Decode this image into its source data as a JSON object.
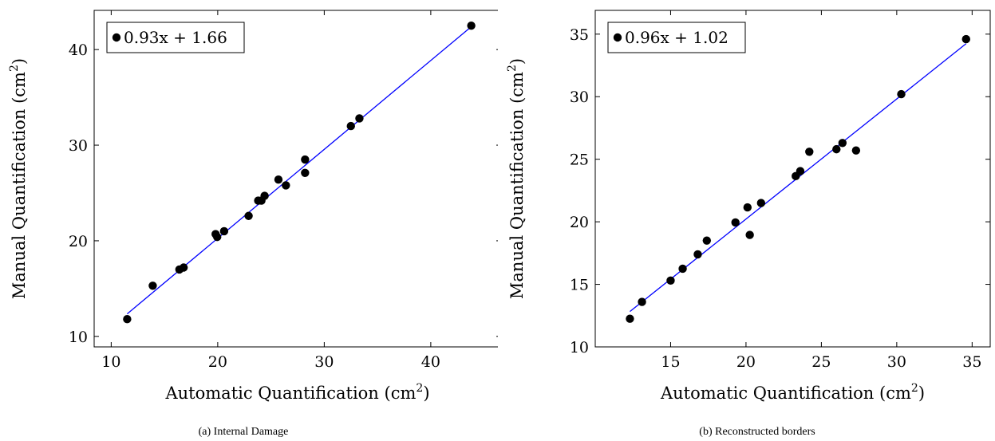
{
  "chart_data": [
    {
      "type": "scatter",
      "caption": "(a) Internal Damage",
      "xlabel": "Automatic Quantification (cm",
      "ylabel": "Manual Quantification (cm",
      "unit_superscript": "2",
      "xlim": [
        8.4,
        46.6
      ],
      "ylim": [
        8.9,
        44.1
      ],
      "xticks": [
        10,
        20,
        30,
        40
      ],
      "yticks": [
        10,
        20,
        30,
        40
      ],
      "grid": false,
      "legend_position": "top-left",
      "legend_label": "0.93x + 1.66",
      "fit": {
        "slope": 0.93,
        "intercept": 1.66,
        "x_range": [
          11.5,
          43.8
        ],
        "color": "#0000ff"
      },
      "points": [
        [
          11.5,
          11.8
        ],
        [
          13.9,
          15.3
        ],
        [
          16.4,
          17.0
        ],
        [
          16.8,
          17.2
        ],
        [
          19.8,
          20.7
        ],
        [
          19.95,
          20.4
        ],
        [
          20.6,
          21.0
        ],
        [
          22.9,
          22.6
        ],
        [
          23.8,
          24.2
        ],
        [
          24.1,
          24.2
        ],
        [
          24.4,
          24.7
        ],
        [
          25.7,
          26.4
        ],
        [
          26.4,
          25.8
        ],
        [
          28.2,
          28.5
        ],
        [
          28.2,
          27.1
        ],
        [
          32.5,
          32.0
        ],
        [
          33.3,
          32.8
        ],
        [
          43.8,
          42.5
        ]
      ]
    },
    {
      "type": "scatter",
      "caption": "(b) Reconstructed borders",
      "xlabel": "Automatic Quantification (cm",
      "ylabel": "Manual Quantification (cm",
      "unit_superscript": "2",
      "xlim": [
        10.0,
        36.2
      ],
      "ylim": [
        10.0,
        36.9
      ],
      "xticks": [
        15,
        20,
        25,
        30,
        35
      ],
      "yticks": [
        10,
        15,
        20,
        25,
        30,
        35
      ],
      "grid": false,
      "legend_position": "top-left",
      "legend_label": "0.96x + 1.02",
      "fit": {
        "slope": 0.96,
        "intercept": 1.02,
        "x_range": [
          12.3,
          34.6
        ],
        "color": "#0000ff"
      },
      "points": [
        [
          12.3,
          12.25
        ],
        [
          13.1,
          13.6
        ],
        [
          15.0,
          15.3
        ],
        [
          15.8,
          16.25
        ],
        [
          16.8,
          17.4
        ],
        [
          17.4,
          18.5
        ],
        [
          19.3,
          19.95
        ],
        [
          20.1,
          21.15
        ],
        [
          20.25,
          18.95
        ],
        [
          21.0,
          21.5
        ],
        [
          23.3,
          23.65
        ],
        [
          23.6,
          24.05
        ],
        [
          24.2,
          25.6
        ],
        [
          26.0,
          25.8
        ],
        [
          26.4,
          26.3
        ],
        [
          27.3,
          25.7
        ],
        [
          30.3,
          30.2
        ],
        [
          34.6,
          34.6
        ]
      ]
    }
  ]
}
